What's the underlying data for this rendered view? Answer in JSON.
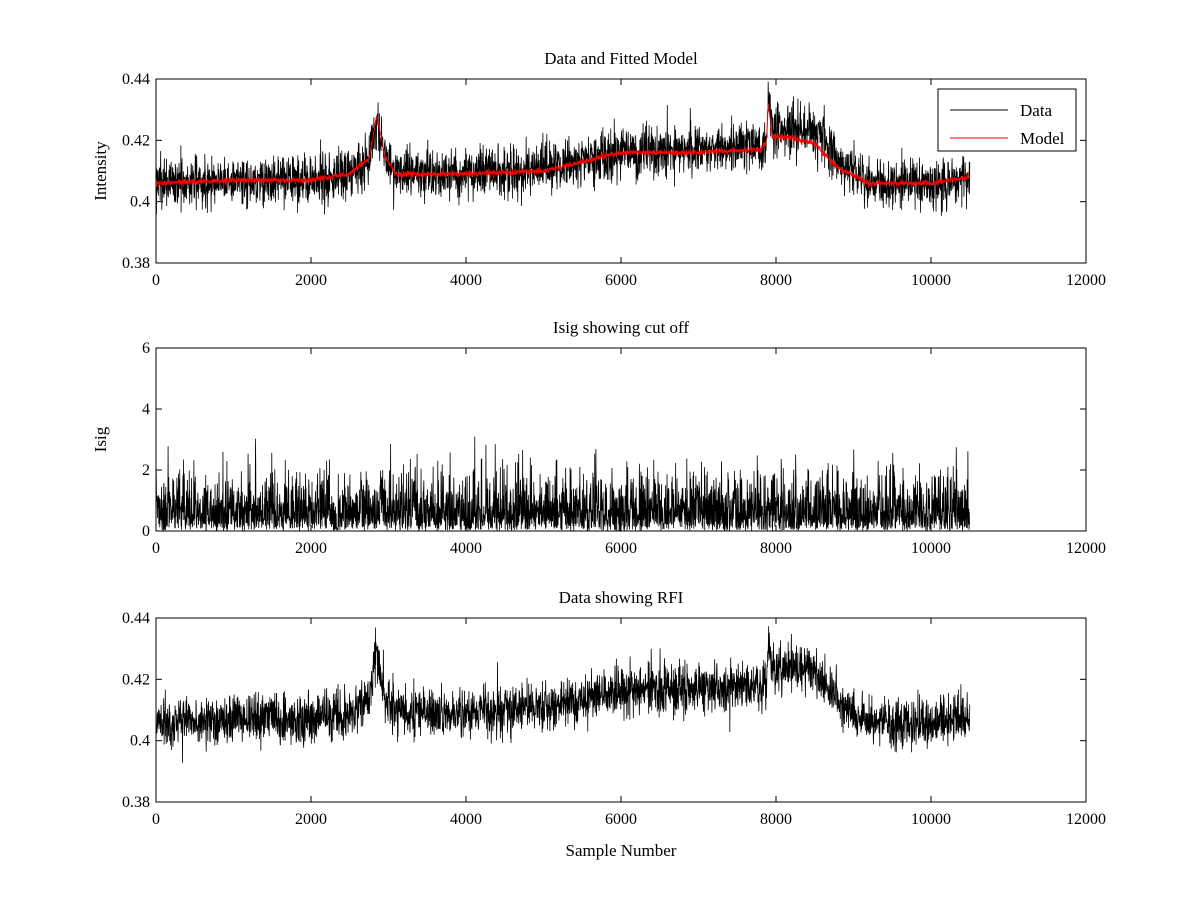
{
  "chart_data": [
    {
      "type": "line",
      "title": "Data and Fitted Model",
      "xlabel": "",
      "ylabel": "Intensity",
      "xlim": [
        0,
        12000
      ],
      "ylim": [
        0.38,
        0.44
      ],
      "xticks": [
        "0",
        "2000",
        "4000",
        "6000",
        "8000",
        "10000",
        "12000"
      ],
      "yticks": [
        "0.38",
        "0.4",
        "0.42",
        "0.44"
      ],
      "legend": {
        "placement": "top-right",
        "entries": [
          "Data",
          "Model"
        ]
      },
      "series": [
        {
          "name": "Data",
          "color": "#000000",
          "noise": 0.004,
          "x": [
            0,
            1000,
            2000,
            2500,
            2750,
            2850,
            2950,
            3100,
            4000,
            5000,
            6000,
            7000,
            7800,
            7880,
            7900,
            7950,
            8200,
            8500,
            8800,
            9200,
            10000,
            10500
          ],
          "y": [
            0.406,
            0.407,
            0.407,
            0.409,
            0.414,
            0.427,
            0.415,
            0.409,
            0.409,
            0.411,
            0.416,
            0.417,
            0.418,
            0.421,
            0.433,
            0.423,
            0.424,
            0.423,
            0.413,
            0.406,
            0.406,
            0.407
          ]
        },
        {
          "name": "Model",
          "color": "#ff0000",
          "noise": 0.0005,
          "x": [
            0,
            1000,
            2000,
            2500,
            2750,
            2850,
            2950,
            3100,
            4000,
            5000,
            6000,
            7000,
            7800,
            7880,
            7900,
            7950,
            8200,
            8500,
            8800,
            9200,
            10000,
            10500
          ],
          "y": [
            0.406,
            0.407,
            0.407,
            0.409,
            0.414,
            0.428,
            0.415,
            0.409,
            0.409,
            0.41,
            0.416,
            0.416,
            0.417,
            0.42,
            0.432,
            0.421,
            0.421,
            0.419,
            0.411,
            0.406,
            0.406,
            0.408
          ]
        }
      ]
    },
    {
      "type": "line",
      "title": "Isig showing cut off",
      "xlabel": "",
      "ylabel": "Isig",
      "xlim": [
        0,
        12000
      ],
      "ylim": [
        0,
        6
      ],
      "xticks": [
        "0",
        "2000",
        "4000",
        "6000",
        "8000",
        "10000",
        "12000"
      ],
      "yticks": [
        "0",
        "2",
        "4",
        "6"
      ],
      "series": [
        {
          "color": "#000000",
          "distribution": "abs-normal",
          "scale": 0.9,
          "x": [
            0,
            10500
          ]
        }
      ]
    },
    {
      "type": "line",
      "title": "Data showing RFI",
      "xlabel": "Sample Number",
      "ylabel": "",
      "xlim": [
        0,
        12000
      ],
      "ylim": [
        0.38,
        0.44
      ],
      "xticks": [
        "0",
        "2000",
        "4000",
        "6000",
        "8000",
        "10000",
        "12000"
      ],
      "yticks": [
        "0.38",
        "0.4",
        "0.42",
        "0.44"
      ],
      "series": [
        {
          "color": "#000000",
          "noise": 0.004,
          "x": [
            0,
            1000,
            2000,
            2500,
            2750,
            2850,
            2950,
            3100,
            4000,
            5000,
            6000,
            7000,
            7800,
            7880,
            7900,
            7950,
            8200,
            8500,
            8800,
            9200,
            10000,
            10500
          ],
          "y": [
            0.406,
            0.407,
            0.407,
            0.409,
            0.414,
            0.427,
            0.415,
            0.409,
            0.409,
            0.411,
            0.416,
            0.417,
            0.418,
            0.421,
            0.433,
            0.423,
            0.424,
            0.423,
            0.413,
            0.406,
            0.406,
            0.407
          ]
        }
      ]
    }
  ]
}
